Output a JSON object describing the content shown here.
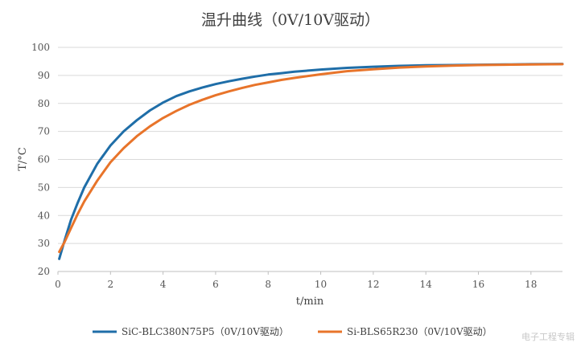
{
  "chart_data": {
    "type": "line",
    "title": "温升曲线（0V/10V驱动）",
    "xlabel": "t/min",
    "ylabel": "T/°C",
    "xlim": [
      0,
      19.2
    ],
    "ylim": [
      20,
      100
    ],
    "xticks": [
      0,
      2,
      4,
      6,
      8,
      10,
      12,
      14,
      16,
      18
    ],
    "yticks": [
      20,
      30,
      40,
      50,
      60,
      70,
      80,
      90,
      100
    ],
    "grid": "horizontal",
    "legend_position": "bottom",
    "series": [
      {
        "name": "SiC-BLC380N75P5（0V/10V驱动）",
        "color": "#1f6ea8",
        "x": [
          0.05,
          0.25,
          0.5,
          0.75,
          1,
          1.5,
          2,
          2.5,
          3,
          3.5,
          4,
          4.5,
          5,
          5.5,
          6,
          6.5,
          7,
          7.5,
          8,
          8.5,
          9,
          10,
          11,
          12,
          13,
          14,
          15,
          16,
          17,
          18,
          19.2
        ],
        "y": [
          24.5,
          31,
          38.5,
          44.5,
          50,
          58.5,
          65,
          70,
          74,
          77.5,
          80.3,
          82.6,
          84.3,
          85.7,
          86.9,
          87.9,
          88.8,
          89.6,
          90.3,
          90.8,
          91.3,
          92.1,
          92.7,
          93.1,
          93.4,
          93.6,
          93.7,
          93.8,
          93.9,
          94,
          94.1
        ]
      },
      {
        "name": "Si-BLS65R230（0V/10V驱动）",
        "color": "#e8742a",
        "x": [
          0.05,
          0.25,
          0.5,
          0.75,
          1,
          1.5,
          2,
          2.5,
          3,
          3.5,
          4,
          4.5,
          5,
          5.5,
          6,
          6.5,
          7,
          7.5,
          8,
          8.5,
          9,
          10,
          11,
          12,
          13,
          14,
          15,
          16,
          17,
          18,
          19.2
        ],
        "y": [
          27,
          30.5,
          35.5,
          40.5,
          45,
          52.5,
          59,
          64,
          68.3,
          71.8,
          74.8,
          77.3,
          79.5,
          81.3,
          82.9,
          84.3,
          85.5,
          86.6,
          87.5,
          88.4,
          89.1,
          90.4,
          91.5,
          92.2,
          92.8,
          93.2,
          93.5,
          93.7,
          93.8,
          93.9,
          94
        ]
      }
    ]
  }
}
